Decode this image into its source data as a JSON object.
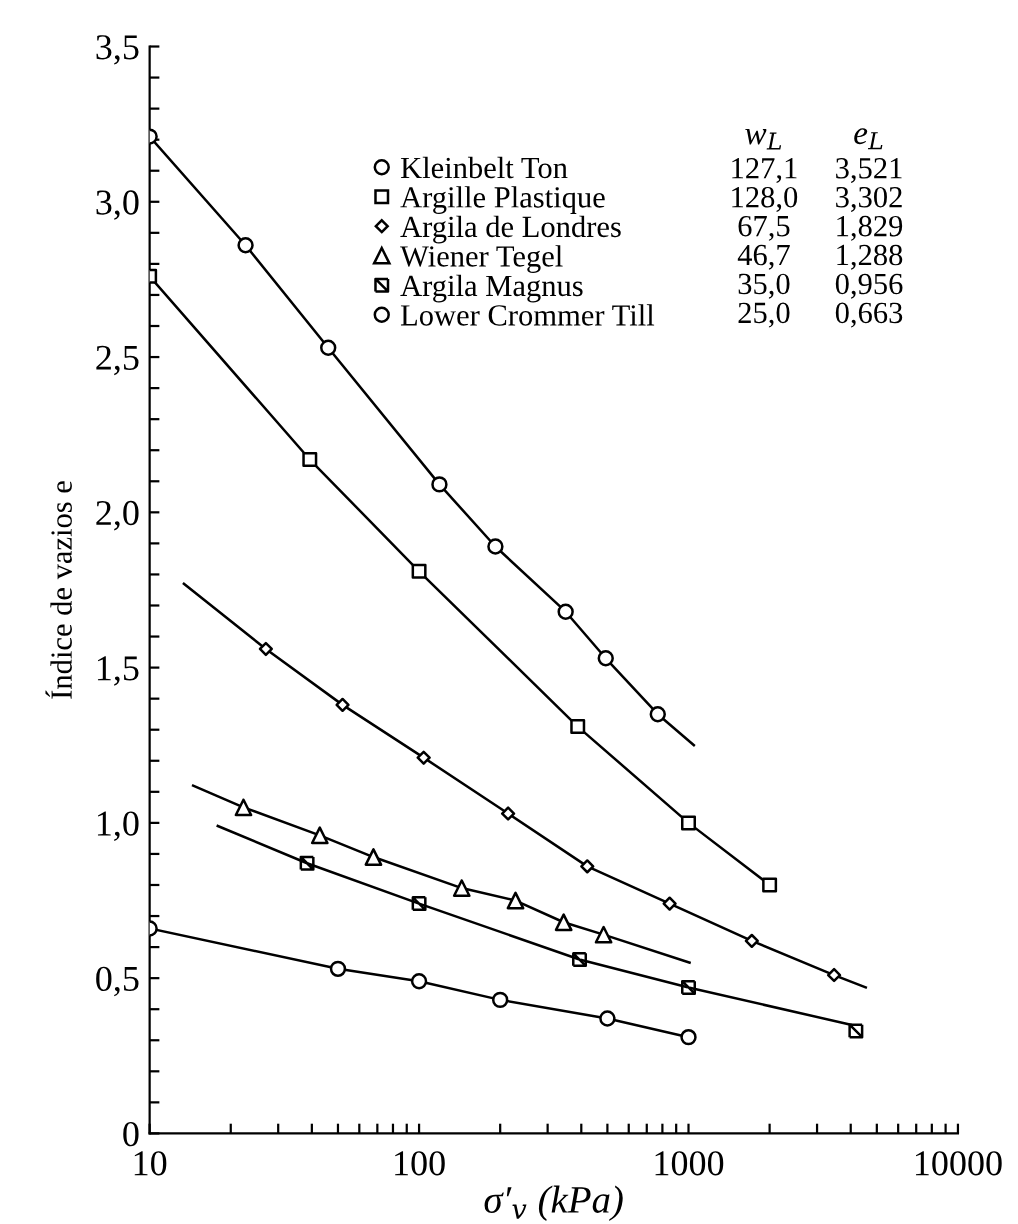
{
  "chart_data": {
    "type": "scatter",
    "xlabel": "σ′$_{v}$ (kPa)",
    "ylabel": "Índice de vazios e",
    "log": "x",
    "xlim": [
      10,
      10000
    ],
    "ylim": [
      0,
      3.5
    ],
    "xticks": [
      10,
      {
        "value": 20,
        "label": null
      },
      {
        "value": 30,
        "label": null
      },
      {
        "value": 40,
        "label": null
      },
      {
        "value": 50,
        "label": null
      },
      {
        "value": 60,
        "label": null
      },
      {
        "value": 70,
        "label": null
      },
      {
        "value": 80,
        "label": null
      },
      {
        "value": 90,
        "label": null
      },
      100,
      {
        "value": 200,
        "label": null
      },
      {
        "value": 300,
        "label": null
      },
      {
        "value": 400,
        "label": null
      },
      {
        "value": 500,
        "label": null
      },
      {
        "value": 600,
        "label": null
      },
      {
        "value": 700,
        "label": null
      },
      {
        "value": 800,
        "label": null
      },
      {
        "value": 900,
        "label": null
      },
      1000,
      {
        "value": 2000,
        "label": null
      },
      {
        "value": 3000,
        "label": null
      },
      {
        "value": 4000,
        "label": null
      },
      {
        "value": 5000,
        "label": null
      },
      {
        "value": 6000,
        "label": null
      },
      {
        "value": 7000,
        "label": null
      },
      {
        "value": 8000,
        "label": null
      },
      {
        "value": 9000,
        "label": null
      },
      10000
    ],
    "yticks": [
      {
        "value": 0,
        "label": "0"
      },
      {
        "value": 0.1,
        "label": null
      },
      {
        "value": 0.2,
        "label": null
      },
      {
        "value": 0.3,
        "label": null
      },
      {
        "value": 0.4,
        "label": null
      },
      {
        "value": 0.5,
        "label": "0,5"
      },
      {
        "value": 0.6,
        "label": null
      },
      {
        "value": 0.7,
        "label": null
      },
      {
        "value": 0.8,
        "label": null
      },
      {
        "value": 0.9,
        "label": null
      },
      {
        "value": 1.0,
        "label": "1,0"
      },
      {
        "value": 1.1,
        "label": null
      },
      {
        "value": 1.2,
        "label": null
      },
      {
        "value": 1.3,
        "label": null
      },
      {
        "value": 1.4,
        "label": null
      },
      {
        "value": 1.5,
        "label": "1,5"
      },
      {
        "value": 1.6,
        "label": null
      },
      {
        "value": 1.7,
        "label": null
      },
      {
        "value": 1.8,
        "label": null
      },
      {
        "value": 1.9,
        "label": null
      },
      {
        "value": 2.0,
        "label": "2,0"
      },
      {
        "value": 2.1,
        "label": null
      },
      {
        "value": 2.2,
        "label": null
      },
      {
        "value": 2.3,
        "label": null
      },
      {
        "value": 2.4,
        "label": null
      },
      {
        "value": 2.5,
        "label": "2,5"
      },
      {
        "value": 2.6,
        "label": null
      },
      {
        "value": 2.7,
        "label": null
      },
      {
        "value": 2.8,
        "label": null
      },
      {
        "value": 2.9,
        "label": null
      },
      {
        "value": 3.0,
        "label": "3,0"
      },
      {
        "value": 3.1,
        "label": null
      },
      {
        "value": 3.2,
        "label": null
      },
      {
        "value": 3.3,
        "label": null
      },
      {
        "value": 3.4,
        "label": null
      },
      {
        "value": 3.5,
        "label": "3,5"
      }
    ],
    "grid": false,
    "legend": "top right",
    "series": [
      {
        "name": "Kleinbelt Ton",
        "marker": "circle",
        "color": "#000000",
        "x": [
          10,
          22.7,
          46,
          119,
          192,
          350,
          493,
          769
        ],
        "values": [
          3.21,
          2.86,
          2.53,
          2.09,
          1.89,
          1.68,
          1.53,
          1.35
        ]
      },
      {
        "name": "Argille Plastique",
        "marker": "square",
        "color": "#000000",
        "x": [
          10,
          39.3,
          100,
          388,
          1000,
          2000
        ],
        "values": [
          2.76,
          2.17,
          1.81,
          1.31,
          1.0,
          0.8
        ]
      },
      {
        "name": "Argila de Londres",
        "marker": "diamond",
        "color": "#000000",
        "x": [
          27,
          52,
          104,
          214,
          421,
          851,
          1718,
          3470
        ],
        "values": [
          1.56,
          1.38,
          1.21,
          1.03,
          0.86,
          0.74,
          0.62,
          0.51
        ]
      },
      {
        "name": "Wiener Tegel",
        "marker": "triangle",
        "color": "#000000",
        "x": [
          22.3,
          42.8,
          67.7,
          144,
          228,
          344,
          484
        ],
        "values": [
          1.05,
          0.96,
          0.89,
          0.79,
          0.75,
          0.68,
          0.64
        ]
      },
      {
        "name": "Argila Magnus",
        "marker": "cross",
        "color": "#000000",
        "x": [
          38.4,
          100,
          394,
          1000,
          4180
        ],
        "values": [
          0.87,
          0.74,
          0.56,
          0.47,
          0.33
        ]
      },
      {
        "name": "Lower Crommer Till",
        "marker": "circle",
        "color": "#000000",
        "x": [
          10,
          50,
          100,
          200,
          500,
          1000
        ],
        "values": [
          0.66,
          0.53,
          0.49,
          0.43,
          0.37,
          0.31
        ]
      },
      {
        "type": "line",
        "marker": "none",
        "color": "#000000",
        "x": [
          10,
          22.7,
          46,
          119,
          192,
          350,
          493,
          769,
          1047
        ],
        "values": [
          3.21,
          2.86,
          2.53,
          2.09,
          1.89,
          1.68,
          1.53,
          1.35,
          1.25
        ]
      },
      {
        "type": "line",
        "marker": "none",
        "color": "#000000",
        "x": [
          10,
          39.3,
          100,
          388,
          1000,
          2000
        ],
        "values": [
          2.76,
          2.17,
          1.81,
          1.31,
          1.0,
          0.8
        ]
      },
      {
        "type": "line",
        "marker": "none",
        "color": "#000000",
        "x": [
          13.4,
          27,
          52,
          104,
          214,
          421,
          851,
          1718,
          3470,
          4550
        ],
        "values": [
          1.77,
          1.56,
          1.38,
          1.21,
          1.03,
          0.86,
          0.74,
          0.62,
          0.51,
          0.47
        ]
      },
      {
        "type": "line",
        "marker": "none",
        "color": "#000000",
        "x": [
          14.5,
          22.3,
          42.8,
          67.7,
          144,
          228,
          344,
          484,
          1009
        ],
        "values": [
          1.12,
          1.05,
          0.96,
          0.89,
          0.79,
          0.75,
          0.68,
          0.64,
          0.55
        ]
      },
      {
        "type": "line",
        "marker": "none",
        "color": "#000000",
        "x": [
          17.9,
          38.4,
          100,
          394,
          1000,
          4000
        ],
        "values": [
          0.99,
          0.87,
          0.74,
          0.56,
          0.47,
          0.35
        ]
      },
      {
        "type": "line",
        "marker": "none",
        "color": "#000000",
        "x": [
          10,
          50,
          100,
          200,
          500,
          1000
        ],
        "values": [
          0.66,
          0.53,
          0.49,
          0.43,
          0.37,
          0.31
        ]
      }
    ],
    "annotations": [
      "w$_{L}$",
      "e$_{L}$",
      "127,1",
      "3,521",
      "128,0",
      "3,302",
      "67,5",
      "1,829",
      "46,7",
      "1,288",
      "35,0",
      "0,956",
      "25,0",
      "0,663"
    ]
  }
}
